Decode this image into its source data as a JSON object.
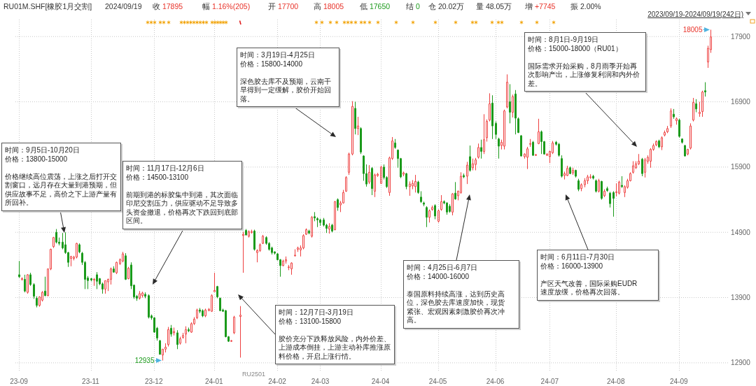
{
  "chart_data": {
    "type": "candlestick",
    "title": "RU01M.SHF[橡胶1月交割]",
    "categories": [
      "23-09",
      null,
      null,
      null,
      null,
      null,
      null,
      null,
      null,
      null,
      null,
      null,
      null,
      null,
      null,
      null,
      null,
      null,
      null,
      null,
      null,
      null,
      null,
      null,
      null,
      "23-11",
      null,
      null,
      null,
      null,
      null,
      null,
      null,
      null,
      null,
      null,
      null,
      null,
      null,
      null,
      null,
      null,
      null,
      null,
      null,
      null,
      null,
      "23-12",
      null,
      null,
      null,
      null,
      null,
      null,
      null,
      null,
      null,
      null,
      null,
      null,
      null,
      null,
      null,
      null,
      null,
      null,
      null,
      null,
      "24-01",
      null,
      null,
      null,
      null,
      null,
      null,
      null,
      null,
      null,
      null,
      null,
      null,
      null,
      null,
      null,
      null,
      null,
      null,
      null,
      null,
      null,
      "24-02",
      null,
      null,
      null,
      null,
      null,
      null,
      null,
      null,
      null,
      null,
      null,
      null,
      null,
      null,
      "24-03",
      null,
      null,
      null,
      null,
      null,
      null,
      null,
      null,
      null,
      null,
      null,
      null,
      null,
      null,
      null,
      null,
      null,
      null,
      null,
      null,
      "24-04",
      null,
      null,
      null,
      null,
      null,
      null,
      null,
      null,
      null,
      null,
      null,
      null,
      null,
      null,
      null,
      null,
      null,
      null,
      null,
      "24-05",
      null,
      null,
      null,
      null,
      null,
      null,
      null,
      null,
      null,
      null,
      null,
      null,
      null,
      null,
      null,
      null,
      null,
      null,
      null,
      "24-06",
      null,
      null,
      null,
      null,
      null,
      null,
      null,
      null,
      null,
      null,
      null,
      null,
      null,
      null,
      null,
      null,
      null,
      null,
      "24-07",
      null,
      null,
      null,
      null,
      null,
      null,
      null,
      null,
      null,
      null,
      null,
      null,
      null,
      null,
      null,
      null,
      null,
      null,
      null,
      null,
      null,
      null,
      "24-08",
      null,
      null,
      null,
      null,
      null,
      null,
      null,
      null,
      null,
      null,
      null,
      null,
      null,
      null,
      null,
      null,
      null,
      null,
      null,
      null,
      null,
      "24-09",
      null,
      null,
      null,
      null,
      null,
      null,
      null,
      null,
      null,
      null,
      null
    ],
    "ohlc": [
      [
        14250,
        14460,
        14200,
        14220
      ],
      [
        14180,
        14210,
        14160,
        14190
      ],
      [
        14180,
        14250,
        13980,
        14000
      ],
      [
        13980,
        14260,
        13960,
        14250
      ],
      [
        14250,
        14280,
        14080,
        14100
      ],
      [
        14100,
        14120,
        13880,
        13920
      ],
      [
        13890,
        13920,
        13750,
        13780
      ],
      [
        13780,
        13920,
        13760,
        13910
      ],
      [
        13860,
        14000,
        13840,
        13980
      ],
      [
        14000,
        14220,
        13920,
        13930
      ],
      [
        13930,
        14340,
        13920,
        14340
      ],
      [
        14340,
        14650,
        14320,
        14640
      ],
      [
        14680,
        14830,
        14660,
        14820
      ],
      [
        14900,
        14950,
        14730,
        14750
      ],
      [
        14750,
        14820,
        14700,
        14730
      ],
      [
        14750,
        14890,
        14640,
        14660
      ],
      [
        14710,
        14900,
        14570,
        14590
      ],
      [
        14590,
        14600,
        14370,
        14440
      ],
      [
        14500,
        14540,
        14380,
        14530
      ],
      [
        14500,
        14540,
        14470,
        14520
      ],
      [
        14520,
        14740,
        14500,
        14730
      ],
      [
        14710,
        14730,
        14580,
        14600
      ],
      [
        14580,
        14600,
        14400,
        14440
      ],
      [
        14440,
        14460,
        14030,
        14180
      ],
      [
        14200,
        14230,
        14030,
        14160
      ],
      [
        14190,
        14200,
        14150,
        14170
      ],
      [
        14170,
        14200,
        14080,
        14180
      ],
      [
        14250,
        14290,
        14030,
        14150
      ],
      [
        14190,
        14200,
        14090,
        14110
      ],
      [
        14110,
        14130,
        13960,
        14030
      ],
      [
        14030,
        14160,
        13960,
        14160
      ],
      [
        14140,
        14190,
        14000,
        14180
      ],
      [
        14180,
        14360,
        14100,
        14340
      ],
      [
        14340,
        14380,
        14280,
        14290
      ],
      [
        14280,
        14450,
        14260,
        14440
      ],
      [
        14420,
        14500,
        14400,
        14480
      ],
      [
        14460,
        14600,
        14440,
        14570
      ],
      [
        14540,
        14580,
        14170,
        14180
      ],
      [
        14190,
        14370,
        14180,
        14350
      ],
      [
        14400,
        14440,
        14030,
        14080
      ],
      [
        14090,
        14100,
        13880,
        13910
      ],
      [
        13920,
        13940,
        13850,
        13890
      ],
      [
        13890,
        14000,
        13870,
        13960
      ],
      [
        13930,
        13990,
        13900,
        13970
      ],
      [
        13950,
        13980,
        13890,
        13920
      ],
      [
        13930,
        13950,
        13580,
        13600
      ],
      [
        13620,
        13640,
        13560,
        13590
      ],
      [
        13590,
        13600,
        13360,
        13370
      ],
      [
        13430,
        13450,
        13240,
        13280
      ],
      [
        13240,
        13250,
        13030,
        13030
      ],
      [
        13020,
        13110,
        12935,
        13110
      ],
      [
        13110,
        13200,
        13060,
        13140
      ],
      [
        13180,
        13450,
        13150,
        13410
      ],
      [
        13430,
        13480,
        13300,
        13340
      ],
      [
        13360,
        13440,
        13320,
        13380
      ],
      [
        13360,
        13400,
        13110,
        13180
      ],
      [
        13200,
        13300,
        13180,
        13270
      ],
      [
        13290,
        13360,
        13270,
        13320
      ],
      [
        13340,
        13460,
        13200,
        13410
      ],
      [
        13410,
        13440,
        13370,
        13390
      ],
      [
        13370,
        13520,
        13360,
        13500
      ],
      [
        13500,
        13600,
        13480,
        13570
      ],
      [
        13590,
        13730,
        13570,
        13710
      ],
      [
        13710,
        13740,
        13660,
        13690
      ],
      [
        13700,
        13720,
        13600,
        13620
      ],
      [
        13620,
        13730,
        13600,
        13710
      ],
      [
        13700,
        13740,
        13690,
        13720
      ],
      [
        13690,
        13950,
        13680,
        13930
      ],
      [
        13990,
        14280,
        13990,
        14010
      ],
      [
        14070,
        14080,
        13890,
        13910
      ],
      [
        13890,
        13900,
        13690,
        13700
      ],
      [
        13710,
        13730,
        13680,
        13690
      ],
      [
        13700,
        13710,
        13290,
        13300
      ],
      [
        13300,
        13310,
        13220,
        13230
      ],
      [
        13230,
        13250,
        13220,
        13240
      ],
      [
        13360,
        13620,
        13340,
        13600
      ],
      null,
      [
        13610,
        13770,
        12980,
        13630
      ],
      [
        14850,
        14910,
        14280,
        14870
      ],
      [
        14930,
        14950,
        14850,
        14860
      ],
      [
        14840,
        14930,
        14820,
        14910
      ],
      [
        14900,
        14940,
        14880,
        14910
      ],
      [
        14920,
        14940,
        14620,
        14640
      ],
      [
        14590,
        14640,
        14440,
        14620
      ],
      [
        14620,
        14730,
        14600,
        14710
      ],
      [
        14730,
        14860,
        14720,
        14840
      ],
      [
        14820,
        14840,
        14710,
        14730
      ],
      [
        14730,
        14750,
        14620,
        14640
      ],
      [
        14660,
        14680,
        14560,
        14590
      ],
      [
        14600,
        14610,
        14560,
        14580
      ],
      [
        14570,
        14580,
        14470,
        14480
      ],
      [
        14480,
        14490,
        14220,
        14390
      ],
      [
        14390,
        14480,
        14380,
        14460
      ],
      [
        14460,
        14530,
        14420,
        14480
      ],
      [
        14360,
        14400,
        14320,
        14370
      ],
      [
        14340,
        14440,
        14250,
        14430
      ],
      [
        14540,
        14640,
        14530,
        14550
      ],
      [
        14640,
        14680,
        14600,
        14660
      ],
      [
        14630,
        14700,
        14530,
        14660
      ],
      [
        14660,
        14870,
        14640,
        14850
      ],
      [
        14870,
        14960,
        14860,
        14940
      ],
      [
        14920,
        14940,
        14870,
        14890
      ],
      [
        14840,
        15150,
        14820,
        15130
      ],
      [
        15140,
        15210,
        15070,
        15120
      ],
      [
        15110,
        15130,
        14980,
        15090
      ],
      [
        15090,
        15110,
        15000,
        15050
      ],
      [
        15090,
        15120,
        14990,
        15010
      ],
      [
        15010,
        15030,
        14890,
        14960
      ],
      [
        14950,
        15040,
        14880,
        14990
      ],
      [
        15010,
        15030,
        14900,
        14920
      ],
      [
        14940,
        15380,
        14930,
        15370
      ],
      [
        15400,
        15420,
        15230,
        15280
      ],
      [
        15320,
        15380,
        15210,
        15350
      ],
      [
        15350,
        15550,
        15340,
        15510
      ],
      [
        15530,
        15760,
        15520,
        15740
      ],
      [
        15820,
        16120,
        15780,
        16100
      ],
      [
        16100,
        16910,
        16080,
        16830
      ],
      [
        16800,
        16900,
        16400,
        16490
      ],
      [
        16490,
        16670,
        16390,
        16530
      ],
      [
        16490,
        16510,
        16100,
        16130
      ],
      [
        16070,
        16080,
        15690,
        15800
      ],
      [
        15800,
        15940,
        15600,
        15640
      ],
      [
        15670,
        15930,
        15640,
        15820
      ],
      [
        15880,
        15900,
        15470,
        15570
      ],
      [
        15530,
        15800,
        15440,
        15780
      ],
      [
        15770,
        15810,
        15750,
        15790
      ],
      [
        15650,
        15920,
        15640,
        15900
      ],
      [
        15900,
        15940,
        15710,
        15740
      ],
      [
        15740,
        15760,
        15580,
        15600
      ],
      [
        15510,
        16060,
        15460,
        16040
      ],
      [
        16030,
        16360,
        16010,
        16300
      ],
      [
        16270,
        16330,
        16180,
        16200
      ],
      [
        16160,
        16170,
        15890,
        16030
      ],
      [
        16030,
        16040,
        15730,
        15750
      ],
      [
        15790,
        15830,
        15760,
        15810
      ],
      [
        15800,
        15810,
        15560,
        15600
      ],
      [
        15600,
        15680,
        15460,
        15640
      ],
      [
        15610,
        15700,
        15560,
        15650
      ],
      [
        15600,
        15780,
        15510,
        15680
      ],
      [
        15670,
        15690,
        15490,
        15510
      ],
      [
        15440,
        15530,
        15350,
        15370
      ],
      [
        15350,
        15370,
        15300,
        15330
      ],
      [
        15280,
        15300,
        14980,
        15130
      ],
      [
        15130,
        15250,
        15050,
        15230
      ],
      [
        15250,
        15310,
        15230,
        15280
      ],
      [
        15310,
        15330,
        15100,
        15150
      ],
      [
        15070,
        15250,
        15050,
        15230
      ],
      [
        15250,
        15470,
        15230,
        15370
      ],
      [
        15370,
        15390,
        15330,
        15350
      ],
      [
        15350,
        15360,
        15170,
        15210
      ],
      [
        15300,
        15330,
        15200,
        15220
      ],
      [
        15210,
        15500,
        15160,
        15490
      ],
      [
        15500,
        15670,
        15400,
        15410
      ],
      [
        15460,
        15540,
        15390,
        15530
      ],
      [
        15510,
        15820,
        15490,
        15760
      ],
      [
        15770,
        15800,
        15730,
        15750
      ],
      [
        15760,
        15980,
        15640,
        15930
      ],
      [
        16060,
        16230,
        15830,
        15850
      ],
      [
        15890,
        16030,
        15850,
        15950
      ],
      [
        15940,
        16040,
        15850,
        16010
      ],
      [
        16050,
        16260,
        16030,
        16200
      ],
      [
        16200,
        16320,
        16030,
        16140
      ],
      [
        16140,
        16710,
        16100,
        16320
      ],
      [
        16350,
        16630,
        16290,
        16600
      ],
      [
        16620,
        17030,
        16600,
        16870
      ],
      [
        16880,
        17000,
        16330,
        16530
      ],
      [
        16570,
        16600,
        16330,
        16400
      ],
      [
        16330,
        16350,
        16030,
        16220
      ],
      [
        16230,
        16320,
        16170,
        16280
      ],
      [
        16220,
        16780,
        16170,
        16760
      ],
      [
        16820,
        17320,
        16800,
        17200
      ],
      [
        16900,
        17170,
        16570,
        16740
      ],
      [
        16740,
        17010,
        16660,
        16980
      ],
      [
        17020,
        17080,
        16400,
        16650
      ],
      [
        16640,
        16660,
        16420,
        16430
      ],
      [
        16380,
        16390,
        16060,
        16070
      ],
      [
        16060,
        16110,
        16030,
        16100
      ],
      [
        16050,
        16210,
        15870,
        16180
      ],
      [
        16250,
        16330,
        16210,
        16260
      ],
      [
        16280,
        16300,
        16070,
        16080
      ],
      [
        16080,
        16100,
        16070,
        16090
      ],
      [
        16260,
        16640,
        16250,
        16440
      ],
      [
        16440,
        16460,
        16100,
        16290
      ],
      [
        16290,
        16300,
        16090,
        16100
      ],
      [
        16080,
        16110,
        16070,
        16100
      ],
      [
        16060,
        16150,
        15960,
        16140
      ],
      [
        16120,
        16300,
        16100,
        16270
      ],
      [
        16280,
        16300,
        16230,
        16250
      ],
      [
        16250,
        16270,
        16060,
        16080
      ],
      [
        16030,
        16080,
        15740,
        15760
      ],
      [
        15770,
        15830,
        15710,
        15800
      ],
      [
        15770,
        15920,
        15760,
        15880
      ],
      [
        15890,
        15910,
        15790,
        15800
      ],
      [
        15810,
        15890,
        15780,
        15850
      ],
      [
        15850,
        15860,
        15740,
        15760
      ],
      [
        15690,
        15720,
        15530,
        15560
      ],
      [
        15570,
        15650,
        15530,
        15630
      ],
      [
        15630,
        15730,
        15590,
        15690
      ],
      [
        15690,
        15780,
        15640,
        15750
      ],
      [
        15740,
        15790,
        15720,
        15750
      ],
      [
        15760,
        15780,
        15710,
        15730
      ],
      [
        15690,
        15710,
        15510,
        15530
      ],
      [
        15530,
        15720,
        15510,
        15690
      ],
      [
        15680,
        15690,
        15400,
        15420
      ],
      [
        15460,
        15560,
        15440,
        15530
      ],
      [
        15570,
        15600,
        15520,
        15540
      ],
      [
        15500,
        15520,
        15280,
        15340
      ],
      [
        15510,
        15530,
        15140,
        15420
      ],
      [
        15510,
        15650,
        15450,
        15520
      ],
      [
        15500,
        15690,
        15480,
        15670
      ],
      [
        15620,
        15760,
        15580,
        15600
      ],
      [
        15510,
        15620,
        15440,
        15600
      ],
      [
        15590,
        15720,
        15570,
        15690
      ],
      [
        15690,
        15820,
        15680,
        15800
      ],
      [
        15820,
        15990,
        15800,
        15920
      ],
      [
        15890,
        15990,
        15870,
        15950
      ],
      [
        15950,
        16100,
        15930,
        15990
      ],
      [
        16020,
        16040,
        15760,
        15800
      ],
      [
        15820,
        16040,
        15740,
        16010
      ],
      [
        15990,
        16080,
        15950,
        16050
      ],
      [
        15990,
        16190,
        15890,
        16170
      ],
      [
        16170,
        16260,
        16150,
        16230
      ],
      [
        16240,
        16310,
        16220,
        16290
      ],
      [
        16300,
        16320,
        16190,
        16210
      ],
      [
        16210,
        16370,
        16160,
        16350
      ],
      [
        16390,
        16460,
        16370,
        16430
      ],
      [
        16440,
        16530,
        16420,
        16490
      ],
      [
        16530,
        16800,
        16500,
        16760
      ],
      [
        16710,
        16790,
        16640,
        16670
      ],
      [
        16610,
        16660,
        16550,
        16640
      ],
      [
        16620,
        16640,
        16350,
        16370
      ],
      [
        16330,
        16340,
        16260,
        16280
      ],
      [
        16230,
        16240,
        16060,
        16070
      ],
      [
        16100,
        16180,
        16080,
        16170
      ],
      [
        16190,
        16570,
        16170,
        16530
      ],
      [
        16620,
        16960,
        16600,
        16890
      ],
      [
        16870,
        16940,
        16740,
        16790
      ],
      [
        16720,
        16900,
        16670,
        16740
      ],
      [
        16750,
        17070,
        16670,
        17050
      ],
      [
        17070,
        17200,
        16980,
        17050
      ],
      [
        17510,
        17760,
        17420,
        17720
      ],
      [
        17700,
        18005,
        17650,
        17895
      ]
    ],
    "ylim": [
      12770,
      18160
    ],
    "yticks": [
      12900,
      13900,
      14900,
      15900,
      16900,
      17900
    ],
    "grid": true,
    "annotations": [
      "2024/09/19",
      "收 17895",
      "幅 1.16%(205)",
      "开 17700",
      "高 18005",
      "低 17650",
      "结 0",
      "仓 20.02万",
      "量 48.05万",
      "增 +7745",
      "振 2.00%",
      "2023/09/19-2024/09/19(242日)",
      "18005",
      "12935",
      "RU2501",
      "时间：9月5日-10月20日",
      "价格：13800-15000",
      "价格继续高位震荡，上涨之后打开交割窗口，远月存在大量到港预期，但供应故事不足，高价之下上游产量有所回补。",
      "时间：11月17日-12月6日",
      "价格：14500-13100",
      "前期到港的标胶集中到港，其次面临印尼交割压力，供应驱动不足导致多头资金撤退，价格再次下跌回到底部区间。",
      "时间：12月7日-3月19日",
      "价格：13100-15800",
      "胶价充分下跌释放风险，内外价差、上游成本倒挂，上游主动补库推涨原料价格，开启上涨行情。",
      "时间：3月19日-4月25日",
      "价格：15800-14000",
      "深色胶去库不及预期，云南干旱得到一定缓解，胶价开始回落。",
      "时间：4月25日-6月7日",
      "价格：14000-16000",
      "泰国原料持续高涨，达到历史高位，深色胶去库速度加快，现货紧张、宏观因素刺激胶价再次冲高。",
      "时间：6月11日-7月30日",
      "价格：16000-13900",
      "产区天气改善，国际采购EUDR速度放缓，价格再次回落。",
      "时间：8月1日-9月19日",
      "价格：15000-18000（RU01）",
      "国际需求开始采购，8月雨季开始再次影响产出，上涨修复利润和内外价差。"
    ]
  }
}
